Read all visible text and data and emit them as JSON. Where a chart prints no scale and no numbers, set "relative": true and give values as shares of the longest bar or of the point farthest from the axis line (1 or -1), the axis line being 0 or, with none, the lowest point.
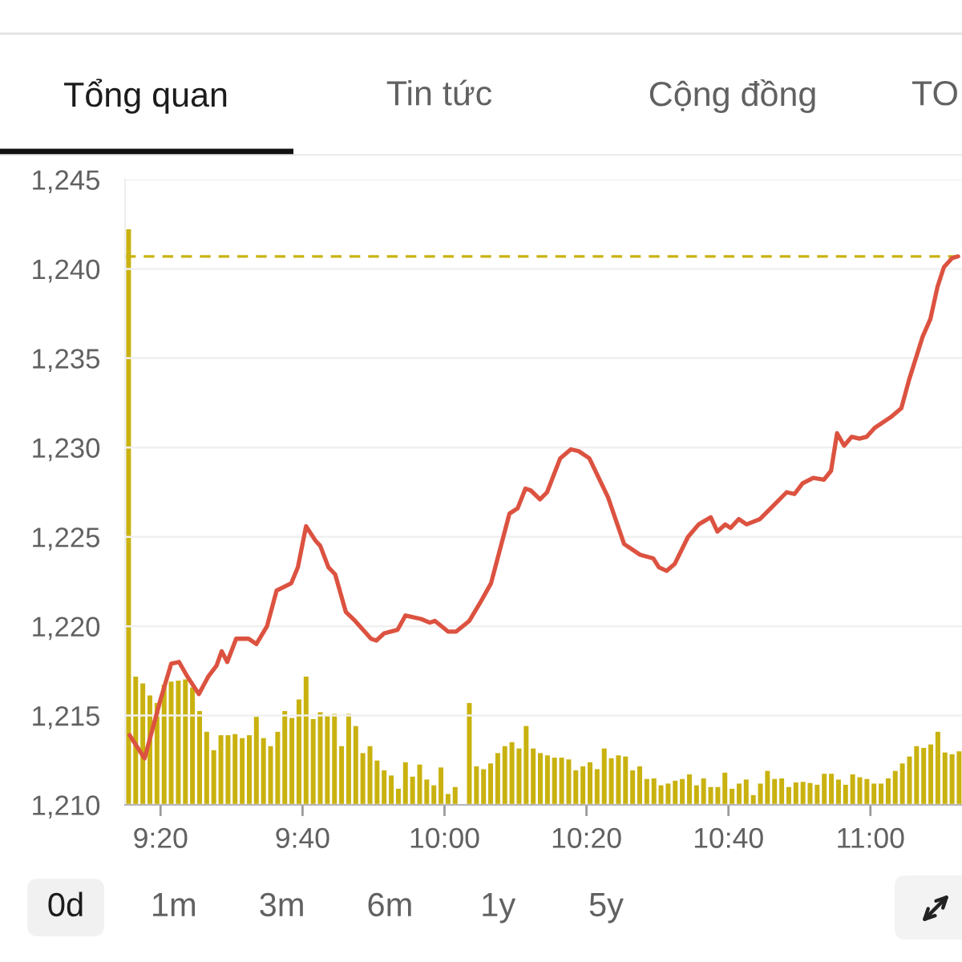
{
  "chart_data": [
    {
      "type": "other",
      "annotations": [
        "Tổng quan",
        "Tin tức",
        "Cộng đồng",
        "TO"
      ]
    },
    {
      "type": "line",
      "x": [
        9.2608,
        9.2958,
        9.3333,
        9.3583,
        9.3767,
        9.3958,
        9.4233,
        9.4458,
        9.465,
        9.4767,
        9.49,
        9.5108,
        9.54,
        9.5583,
        9.5833,
        9.6058,
        9.64,
        9.6558,
        9.675,
        9.6967,
        9.7083,
        9.7275,
        9.7433,
        9.7683,
        9.79,
        9.8275,
        9.84,
        9.8583,
        9.89,
        9.9083,
        9.9458,
        9.965,
        9.9775,
        10.0083,
        10.0275,
        10.0583,
        10.0833,
        10.1092,
        10.1525,
        10.1717,
        10.19,
        10.2025,
        10.2242,
        10.2408,
        10.2717,
        10.2967,
        10.315,
        10.34,
        10.3842,
        10.4217,
        10.4592,
        10.49,
        10.5033,
        10.5217,
        10.5408,
        10.5717,
        10.5967,
        10.625,
        10.6408,
        10.6592,
        10.6717,
        10.6908,
        10.7092,
        10.7408,
        10.7658,
        10.8033,
        10.8217,
        10.8408,
        10.8658,
        10.8908,
        10.9075,
        10.9217,
        10.9383,
        10.9558,
        10.9742,
        10.9908,
        11.01,
        11.0475,
        11.0725,
        11.0908,
        11.1225,
        11.1408,
        11.1575,
        11.1725,
        11.1917,
        11.2058
      ],
      "values": [
        1213.9,
        1212.6,
        1215.9,
        1217.9,
        1218.0,
        1217.2,
        1216.2,
        1217.2,
        1217.8,
        1218.6,
        1218.0,
        1219.3,
        1219.3,
        1219.0,
        1220.0,
        1222.0,
        1222.4,
        1223.3,
        1225.6,
        1224.8,
        1224.5,
        1223.3,
        1222.9,
        1220.8,
        1220.3,
        1219.3,
        1219.2,
        1219.6,
        1219.8,
        1220.6,
        1220.4,
        1220.2,
        1220.3,
        1219.7,
        1219.7,
        1220.3,
        1221.3,
        1222.4,
        1226.3,
        1226.6,
        1227.7,
        1227.6,
        1227.1,
        1227.5,
        1229.4,
        1229.9,
        1229.8,
        1229.4,
        1227.2,
        1224.6,
        1224.0,
        1223.8,
        1223.3,
        1223.1,
        1223.5,
        1225.0,
        1225.7,
        1226.1,
        1225.3,
        1225.7,
        1225.5,
        1226.0,
        1225.7,
        1226.0,
        1226.6,
        1227.5,
        1227.4,
        1228.0,
        1228.3,
        1228.2,
        1228.7,
        1230.8,
        1230.1,
        1230.6,
        1230.5,
        1230.6,
        1231.1,
        1231.7,
        1232.2,
        1233.8,
        1236.2,
        1237.2,
        1239.0,
        1240.1,
        1240.6,
        1240.7
      ],
      "color": "#dc5240",
      "xlim": [
        9.25,
        11.215
      ],
      "xticks": [
        {
          "value": 9.3333,
          "label": "9:20"
        },
        {
          "value": 9.6667,
          "label": "9:40"
        },
        {
          "value": 10,
          "label": "10:00"
        },
        {
          "value": 10.3333,
          "label": "10:20"
        },
        {
          "value": 10.6667,
          "label": "10:40"
        },
        {
          "value": 11,
          "label": "11:00"
        }
      ],
      "ylim": [
        1210,
        1245
      ],
      "yticks": [
        {
          "value": 1210,
          "label": "1,210"
        },
        {
          "value": 1215,
          "label": "1,215"
        },
        {
          "value": 1220,
          "label": "1,220"
        },
        {
          "value": 1225,
          "label": "1,225"
        },
        {
          "value": 1230,
          "label": "1,230"
        },
        {
          "value": 1235,
          "label": "1,235"
        },
        {
          "value": 1240,
          "label": "1,240"
        },
        {
          "value": 1245,
          "label": "1,245"
        }
      ],
      "ref_lines": [
        {
          "axis": "y",
          "value": 1240.7,
          "color": "#c9b20f",
          "line_style": "dashed"
        }
      ],
      "grid": "y"
    },
    {
      "type": "bar",
      "relative": true,
      "tick_labels": false,
      "color": "#c9b20f",
      "xlim": [
        9.25,
        11.215
      ],
      "x": [
        9.2583,
        9.275,
        9.2917,
        9.3083,
        9.325,
        9.3417,
        9.3583,
        9.375,
        9.3917,
        9.4083,
        9.425,
        9.4417,
        9.4583,
        9.475,
        9.4917,
        9.5083,
        9.525,
        9.5417,
        9.5583,
        9.575,
        9.5917,
        9.6083,
        9.625,
        9.6417,
        9.6583,
        9.675,
        9.6917,
        9.7083,
        9.725,
        9.7417,
        9.7583,
        9.775,
        9.7917,
        9.8083,
        9.825,
        9.8417,
        9.8583,
        9.875,
        9.8917,
        9.9083,
        9.925,
        9.9417,
        9.9583,
        9.975,
        9.9917,
        10.0083,
        10.025,
        10.0417,
        10.0583,
        10.075,
        10.0917,
        10.1083,
        10.125,
        10.1417,
        10.1583,
        10.175,
        10.1917,
        10.2083,
        10.225,
        10.2417,
        10.2583,
        10.275,
        10.2917,
        10.3083,
        10.325,
        10.3417,
        10.3583,
        10.375,
        10.3917,
        10.4083,
        10.425,
        10.4417,
        10.4583,
        10.475,
        10.4917,
        10.5083,
        10.525,
        10.5417,
        10.5583,
        10.575,
        10.5917,
        10.6083,
        10.625,
        10.6417,
        10.6583,
        10.675,
        10.6917,
        10.7083,
        10.725,
        10.7417,
        10.7583,
        10.775,
        10.7917,
        10.8083,
        10.825,
        10.8417,
        10.8583,
        10.875,
        10.8917,
        10.9083,
        10.925,
        10.9417,
        10.9583,
        10.975,
        10.9917,
        11.0083,
        11.025,
        11.0417,
        11.0583,
        11.075,
        11.0917,
        11.1083,
        11.125,
        11.1417,
        11.1583,
        11.175,
        11.1917,
        11.2083
      ],
      "values": [
        1,
        0.223,
        0.211,
        0.19,
        0.177,
        0.209,
        0.214,
        0.216,
        0.218,
        0.204,
        0.163,
        0.127,
        0.095,
        0.121,
        0.121,
        0.123,
        0.116,
        0.121,
        0.153,
        0.116,
        0.102,
        0.127,
        0.163,
        0.151,
        0.183,
        0.223,
        0.149,
        0.161,
        0.155,
        0.158,
        0.102,
        0.158,
        0.137,
        0.09,
        0.102,
        0.077,
        0.06,
        0.051,
        0.028,
        0.074,
        0.049,
        0.07,
        0.044,
        0.034,
        0.065,
        0.019,
        0.031,
        null,
        0.177,
        0.067,
        0.062,
        0.072,
        0.09,
        0.102,
        0.109,
        0.098,
        0.137,
        0.098,
        0.09,
        0.086,
        0.082,
        0.082,
        0.079,
        0.06,
        0.067,
        0.074,
        0.062,
        0.098,
        0.081,
        0.086,
        0.084,
        0.06,
        0.067,
        0.045,
        0.046,
        0.034,
        0.037,
        0.042,
        0.045,
        0.053,
        0.034,
        0.046,
        0.031,
        0.031,
        0.056,
        0.028,
        0.037,
        0.044,
        0.017,
        0.037,
        0.059,
        0.045,
        0.046,
        0.031,
        0.039,
        0.04,
        0.038,
        0.035,
        0.054,
        0.054,
        0.044,
        0.035,
        0.053,
        0.048,
        0.045,
        0.037,
        0.037,
        0.046,
        0.059,
        0.072,
        0.084,
        0.102,
        0.099,
        0.105,
        0.127,
        0.091,
        0.088,
        0.093
      ]
    },
    {
      "type": "other",
      "annotations": [
        "0d",
        "1m",
        "3m",
        "6m",
        "1y",
        "5y"
      ]
    }
  ]
}
